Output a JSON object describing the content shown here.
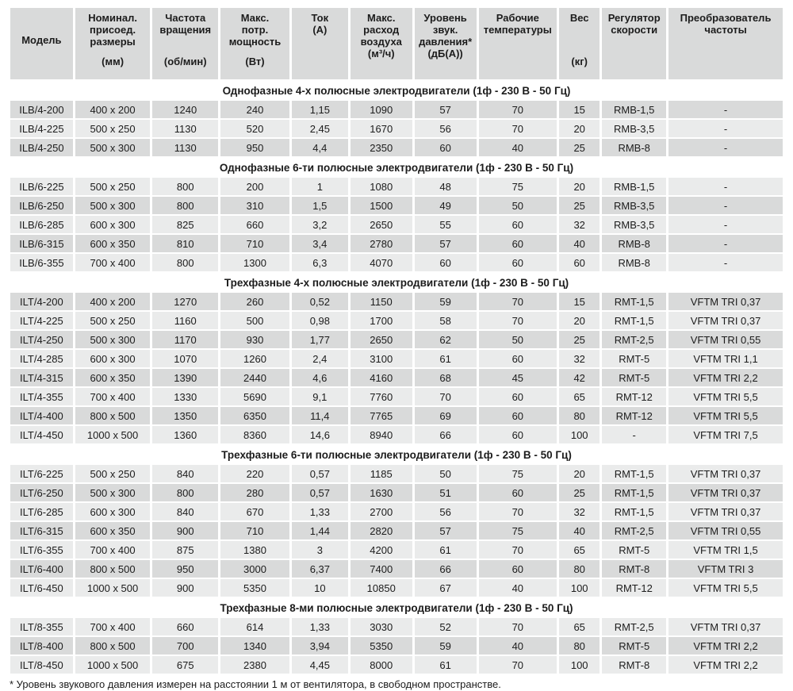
{
  "colors": {
    "cell_dark": "#d9dada",
    "cell_light": "#eaebeb",
    "header_bg": "#d9dada",
    "text": "#1c1c1c"
  },
  "table": {
    "columns": [
      {
        "title": "Модель",
        "unit": ""
      },
      {
        "title": "Номинал.\nприсоед.\nразмеры",
        "unit": "(мм)"
      },
      {
        "title": "Частота\nвращения",
        "unit": "(об/мин)"
      },
      {
        "title": "Макс.\nпотр.\nмощность",
        "unit": "(Вт)"
      },
      {
        "title": "Ток",
        "unit": "(А)"
      },
      {
        "title": "Макс.\nрасход\nвоздуха",
        "unit": "(м³/ч)"
      },
      {
        "title": "Уровень\nзвук.\nдавления*",
        "unit": "(дБ(А))"
      },
      {
        "title": "Рабочие\nтемпературы",
        "unit": ""
      },
      {
        "title": "Вес",
        "unit": "(кг)"
      },
      {
        "title": "Регулятор\nскорости",
        "unit": ""
      },
      {
        "title": "Преобразователь\nчастоты",
        "unit": ""
      }
    ],
    "sections": [
      {
        "title": "Однофазные 4-х полюсные электродвигатели (1ф - 230 В - 50 Гц)",
        "rows": [
          [
            "ILB/4-200",
            "400 x 200",
            "1240",
            "240",
            "1,15",
            "1090",
            "57",
            "70",
            "15",
            "RMB-1,5",
            "-"
          ],
          [
            "ILB/4-225",
            "500 x 250",
            "1130",
            "520",
            "2,45",
            "1670",
            "56",
            "70",
            "20",
            "RMB-3,5",
            "-"
          ],
          [
            "ILB/4-250",
            "500 x 300",
            "1130",
            "950",
            "4,4",
            "2350",
            "60",
            "40",
            "25",
            "RMB-8",
            "-"
          ]
        ]
      },
      {
        "title": "Однофазные 6-ти полюсные электродвигатели (1ф - 230 В - 50 Гц)",
        "rows": [
          [
            "ILB/6-225",
            "500 x 250",
            "800",
            "200",
            "1",
            "1080",
            "48",
            "75",
            "20",
            "RMB-1,5",
            "-"
          ],
          [
            "ILB/6-250",
            "500 x 300",
            "800",
            "310",
            "1,5",
            "1500",
            "49",
            "50",
            "25",
            "RMB-3,5",
            "-"
          ],
          [
            "ILB/6-285",
            "600 x 300",
            "825",
            "660",
            "3,2",
            "2650",
            "55",
            "60",
            "32",
            "RMB-3,5",
            "-"
          ],
          [
            "ILB/6-315",
            "600 x 350",
            "810",
            "710",
            "3,4",
            "2780",
            "57",
            "60",
            "40",
            "RMB-8",
            "-"
          ],
          [
            "ILB/6-355",
            "700 x 400",
            "800",
            "1300",
            "6,3",
            "4070",
            "60",
            "60",
            "60",
            "RMB-8",
            "-"
          ]
        ]
      },
      {
        "title": "Трехфазные 4-х полюсные электродвигатели (1ф - 230 В - 50 Гц)",
        "rows": [
          [
            "ILT/4-200",
            "400 x 200",
            "1270",
            "260",
            "0,52",
            "1150",
            "59",
            "70",
            "15",
            "RMT-1,5",
            "VFTM TRI 0,37"
          ],
          [
            "ILT/4-225",
            "500 x 250",
            "1160",
            "500",
            "0,98",
            "1700",
            "58",
            "70",
            "20",
            "RMT-1,5",
            "VFTM TRI 0,37"
          ],
          [
            "ILT/4-250",
            "500 x 300",
            "1170",
            "930",
            "1,77",
            "2650",
            "62",
            "50",
            "25",
            "RMT-2,5",
            "VFTM TRI 0,55"
          ],
          [
            "ILT/4-285",
            "600 x 300",
            "1070",
            "1260",
            "2,4",
            "3100",
            "61",
            "60",
            "32",
            "RMT-5",
            "VFTM TRI 1,1"
          ],
          [
            "ILT/4-315",
            "600 x 350",
            "1390",
            "2440",
            "4,6",
            "4160",
            "68",
            "45",
            "42",
            "RMT-5",
            "VFTM TRI 2,2"
          ],
          [
            "ILT/4-355",
            "700 x 400",
            "1330",
            "5690",
            "9,1",
            "7760",
            "70",
            "60",
            "65",
            "RMT-12",
            "VFTM TRI 5,5"
          ],
          [
            "ILT/4-400",
            "800 x 500",
            "1350",
            "6350",
            "11,4",
            "7765",
            "69",
            "60",
            "80",
            "RMT-12",
            "VFTM TRI 5,5"
          ],
          [
            "ILT/4-450",
            "1000 x 500",
            "1360",
            "8360",
            "14,6",
            "8940",
            "66",
            "60",
            "100",
            "-",
            "VFTM TRI 7,5"
          ]
        ]
      },
      {
        "title": "Трехфазные 6-ти полюсные электродвигатели (1ф - 230 В - 50 Гц)",
        "rows": [
          [
            "ILT/6-225",
            "500 x 250",
            "840",
            "220",
            "0,57",
            "1185",
            "50",
            "75",
            "20",
            "RMT-1,5",
            "VFTM TRI 0,37"
          ],
          [
            "ILT/6-250",
            "500 x 300",
            "800",
            "280",
            "0,57",
            "1630",
            "51",
            "60",
            "25",
            "RMT-1,5",
            "VFTM TRI 0,37"
          ],
          [
            "ILT/6-285",
            "600 x 300",
            "840",
            "670",
            "1,33",
            "2700",
            "56",
            "70",
            "32",
            "RMT-1,5",
            "VFTM TRI 0,37"
          ],
          [
            "ILT/6-315",
            "600 x 350",
            "900",
            "710",
            "1,44",
            "2820",
            "57",
            "75",
            "40",
            "RMT-2,5",
            "VFTM TRI 0,55"
          ],
          [
            "ILT/6-355",
            "700 x 400",
            "875",
            "1380",
            "3",
            "4200",
            "61",
            "70",
            "65",
            "RMT-5",
            "VFTM TRI 1,5"
          ],
          [
            "ILT/6-400",
            "800 x 500",
            "950",
            "3000",
            "6,37",
            "7400",
            "66",
            "60",
            "80",
            "RMT-8",
            "VFTM TRI 3"
          ],
          [
            "ILT/6-450",
            "1000 x 500",
            "900",
            "5350",
            "10",
            "10850",
            "67",
            "40",
            "100",
            "RMT-12",
            "VFTM TRI 5,5"
          ]
        ]
      },
      {
        "title": "Трехфазные 8-ми полюсные электродвигатели (1ф - 230 В - 50 Гц)",
        "rows": [
          [
            "ILT/8-355",
            "700 x 400",
            "660",
            "614",
            "1,33",
            "3030",
            "52",
            "70",
            "65",
            "RMT-2,5",
            "VFTM TRI 0,37"
          ],
          [
            "ILT/8-400",
            "800 x 500",
            "700",
            "1340",
            "3,94",
            "5350",
            "59",
            "40",
            "80",
            "RMT-5",
            "VFTM TRI 2,2"
          ],
          [
            "ILT/8-450",
            "1000 x 500",
            "675",
            "2380",
            "4,45",
            "8000",
            "61",
            "70",
            "100",
            "RMT-8",
            "VFTM TRI 2,2"
          ]
        ]
      }
    ]
  },
  "footnote": "* Уровень звукового давления измерен на расстоянии 1 м от вентилятора, в свободном пространстве."
}
